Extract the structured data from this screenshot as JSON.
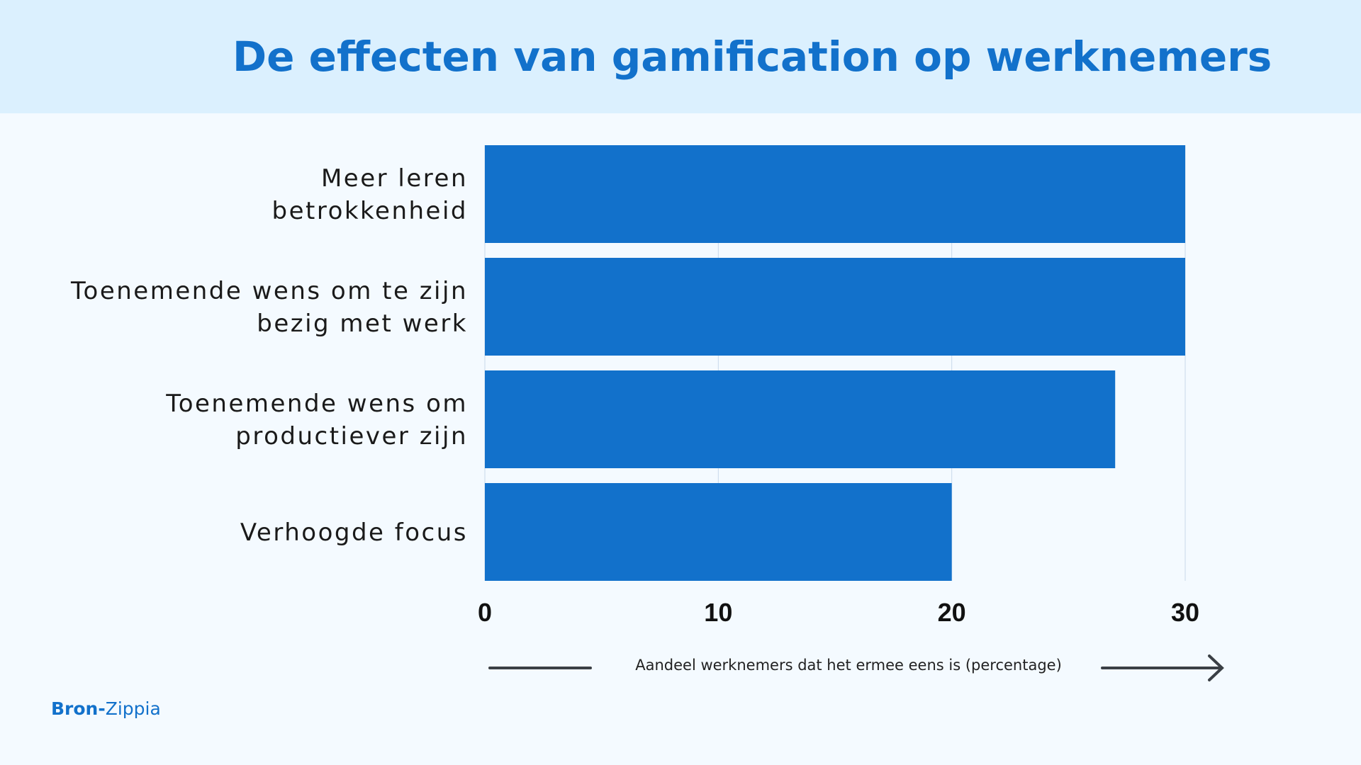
{
  "title": "De effecten van gamification op werknemers",
  "source": {
    "label": "Bron-",
    "name": "Zippia"
  },
  "colors": {
    "bar": "#1271cb",
    "header_bg": "#dbf0fe",
    "background": "#f4faff",
    "grid": "#c9d8ea",
    "arrow": "#3a3f45"
  },
  "chart_data": {
    "type": "bar",
    "orientation": "horizontal",
    "categories": [
      [
        "Meer leren",
        "betrokkenheid"
      ],
      [
        "Toenemende wens om te zijn",
        "bezig met werk"
      ],
      [
        "Toenemende wens om",
        "productiever zijn"
      ],
      [
        "Verhoogde focus"
      ]
    ],
    "values": [
      30,
      30,
      27,
      20
    ],
    "xlabel": "Aandeel werknemers dat het ermee eens is (percentage)",
    "xlim": [
      0,
      30
    ],
    "xticks": [
      0,
      10,
      20,
      30
    ],
    "grid": "vertical"
  }
}
